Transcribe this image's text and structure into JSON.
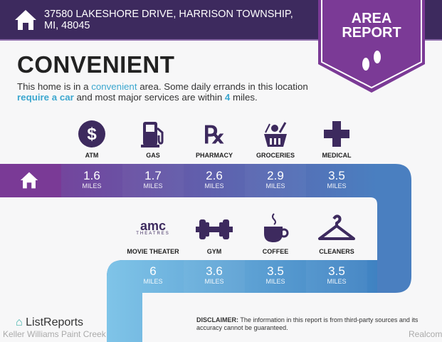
{
  "header": {
    "address": "37580 LAKESHORE DRIVE, HARRISON TOWNSHIP, MI, 48045",
    "badge_line1": "AREA",
    "badge_line2": "REPORT"
  },
  "main": {
    "title": "CONVENIENT",
    "desc": {
      "p1": "This home is in a ",
      "h1": "convenient",
      "p2": " area. Some daily errands in this location ",
      "h2": "require a car",
      "p3": " and most major services are within ",
      "h3": "4",
      "p4": " miles."
    }
  },
  "row1": [
    {
      "label": "ATM",
      "icon": "dollar-icon",
      "value": "1.6",
      "unit": "MILES"
    },
    {
      "label": "GAS",
      "icon": "gas-pump-icon",
      "value": "1.7",
      "unit": "MILES"
    },
    {
      "label": "PHARMACY",
      "icon": "rx-icon",
      "value": "2.6",
      "unit": "MILES"
    },
    {
      "label": "GROCERIES",
      "icon": "basket-icon",
      "value": "2.9",
      "unit": "MILES"
    },
    {
      "label": "MEDICAL",
      "icon": "cross-icon",
      "value": "3.5",
      "unit": "MILES"
    }
  ],
  "row2": [
    {
      "label": "MOVIE THEATER",
      "icon": "amc-theatres-icon",
      "logo_text": "amc",
      "logo_sub": "THEATRES",
      "value": "6",
      "unit": "MILES"
    },
    {
      "label": "GYM",
      "icon": "dumbbell-icon",
      "value": "3.6",
      "unit": "MILES"
    },
    {
      "label": "COFFEE",
      "icon": "coffee-icon",
      "value": "3.5",
      "unit": "MILES"
    },
    {
      "label": "CLEANERS",
      "icon": "hanger-icon",
      "value": "3.5",
      "unit": "MILES"
    }
  ],
  "footer": {
    "disclaimer_label": "DISCLAIMER:",
    "disclaimer": " The information in this report is from third-party sources and its accuracy cannot be guaranteed.",
    "logo": "ListReports",
    "watermark_left": "Keller Williams Paint Creek",
    "watermark_right": "Realcomp"
  },
  "colors": {
    "header": "#3d2a5e",
    "badge": "#7b3a96",
    "accent": "#3ca7cf",
    "icon": "#3d2a5e"
  }
}
